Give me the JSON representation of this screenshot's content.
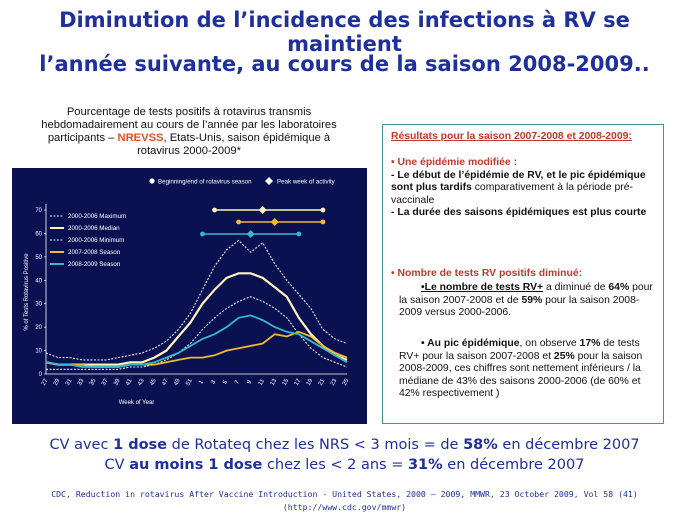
{
  "title": {
    "line1": "Diminution de l’incidence des infections à RV se maintient",
    "line2": "l’année suivante, au cours de la saison 2008-2009.."
  },
  "caption": {
    "part1": "Pourcentage de tests positifs à rotavirus transmis hebdomadairement au cours de l’année par les laboratoires participants – ",
    "highlight": "NREVSS",
    "part2": ", Etats-Unis, saison épidémique à rotavirus 2000-2009*"
  },
  "panel": {
    "header": "Résultats pour la saison 2007-2008 et 2008-2009:",
    "s1_title": "• Une épidémie modifiée :",
    "s1_a_bold": "- Le début de l’épidémie de RV, et le pic épidémique sont plus tardifs",
    "s1_a_rest": " comparativement à la période pré-vaccinale",
    "s1_b_bold": "- La durée des saisons épidémiques est plus courte",
    "s2_title": "• Nombre de tests RV positifs diminué:",
    "b1_u": "•Le nombre de tests RV+",
    "b1_r1": " a diminué de ",
    "b1_v1": "64%",
    "b1_r2": " pour la saison 2007-2008 et de ",
    "b1_v2": "59%",
    "b1_r3": " pour la saison 2008-2009 versus 2000-2006.",
    "b2_b": "• Au pic épidémique",
    "b2_r1": ", on observe ",
    "b2_v1": "17%",
    "b2_r2": " de tests RV+ pour la saison 2007-2008 et ",
    "b2_v2": "25%",
    "b2_r3": " pour la saison 2008-2009, ces chiffres sont nettement inférieurs / la médiane de 43% des saisons 2000-2006 (de 60% et 42% respectivement )"
  },
  "cv": {
    "l1_a": "CV avec ",
    "l1_b": "1 dose",
    "l1_c": " de Rotateq chez les NRS < 3 mois = de ",
    "l1_d": "58%",
    "l1_e": " en décembre 2007",
    "l2_a": "CV ",
    "l2_b": "au moins 1 dose",
    "l2_c": " chez les < 2 ans = ",
    "l2_d": "31%",
    "l2_e": " en décembre 2007"
  },
  "reference": {
    "line1": "CDC, Reduction in rotavirus After Vaccine Introduction - United States, 2000 – 2009, MMWR, 23 October 2009, Vol 58 (41)",
    "line2": "(http://www.cdc.gov/mmwr)"
  },
  "chart_data": {
    "type": "line",
    "xlabel": "Week of Year",
    "ylabel": "% of Tests Rotavirus Positive",
    "ylim": [
      0,
      70
    ],
    "yticks": [
      "0",
      "10",
      "20",
      "30",
      "40",
      "50",
      "60",
      "70"
    ],
    "x": [
      "27",
      "29",
      "31",
      "33",
      "35",
      "37",
      "39",
      "41",
      "43",
      "45",
      "47",
      "49",
      "51",
      "1",
      "3",
      "5",
      "7",
      "9",
      "11",
      "13",
      "15",
      "17",
      "19",
      "21",
      "23",
      "25"
    ],
    "legend_top": [
      "Beginning/end of rotavirus season",
      "Peak week of activity"
    ],
    "season_bars": [
      {
        "series": "2000-2006 Median",
        "start": "3",
        "end": "21",
        "peak": "11",
        "color": "#fff4c0"
      },
      {
        "series": "2007-2008 Season",
        "start": "7",
        "end": "21",
        "peak": "13",
        "color": "#f5b82e"
      },
      {
        "series": "2008-2009 Season",
        "start": "1",
        "end": "17",
        "peak": "9",
        "color": "#36b8cc"
      }
    ],
    "series": [
      {
        "name": "2000-2006 Maximum",
        "color": "#e8e8e8",
        "values": [
          9,
          7,
          7,
          6,
          6,
          6,
          7,
          8,
          9,
          11,
          14,
          19,
          26,
          36,
          46,
          53,
          57,
          52,
          56,
          47,
          40,
          34,
          28,
          19,
          15,
          13
        ]
      },
      {
        "name": "2000-2006 Median",
        "color": "#fff4c0",
        "values": [
          5,
          4,
          4,
          4,
          4,
          4,
          4,
          5,
          5,
          7,
          10,
          16,
          22,
          30,
          36,
          41,
          43,
          43,
          41,
          37,
          33,
          24,
          17,
          12,
          8,
          6
        ]
      },
      {
        "name": "2000-2006 Minimum",
        "color": "#e8e8e8",
        "values": [
          2,
          2,
          2,
          2,
          2,
          2,
          2,
          3,
          3,
          4,
          6,
          9,
          13,
          19,
          24,
          28,
          31,
          33,
          31,
          28,
          24,
          17,
          11,
          7,
          5,
          3
        ]
      },
      {
        "name": "2007-2008 Season",
        "color": "#f5b82e",
        "values": [
          5,
          4,
          4,
          4,
          3,
          3,
          3,
          4,
          4,
          4,
          5,
          6,
          7,
          7,
          8,
          10,
          11,
          12,
          13,
          17,
          16,
          18,
          16,
          12,
          9,
          7
        ]
      },
      {
        "name": "2008-2009 Season",
        "color": "#36b8cc",
        "values": [
          5,
          4,
          4,
          3,
          3,
          3,
          3,
          4,
          4,
          5,
          7,
          9,
          12,
          15,
          17,
          20,
          24,
          25,
          23,
          20,
          18,
          17,
          14,
          11,
          8,
          5
        ]
      }
    ]
  }
}
